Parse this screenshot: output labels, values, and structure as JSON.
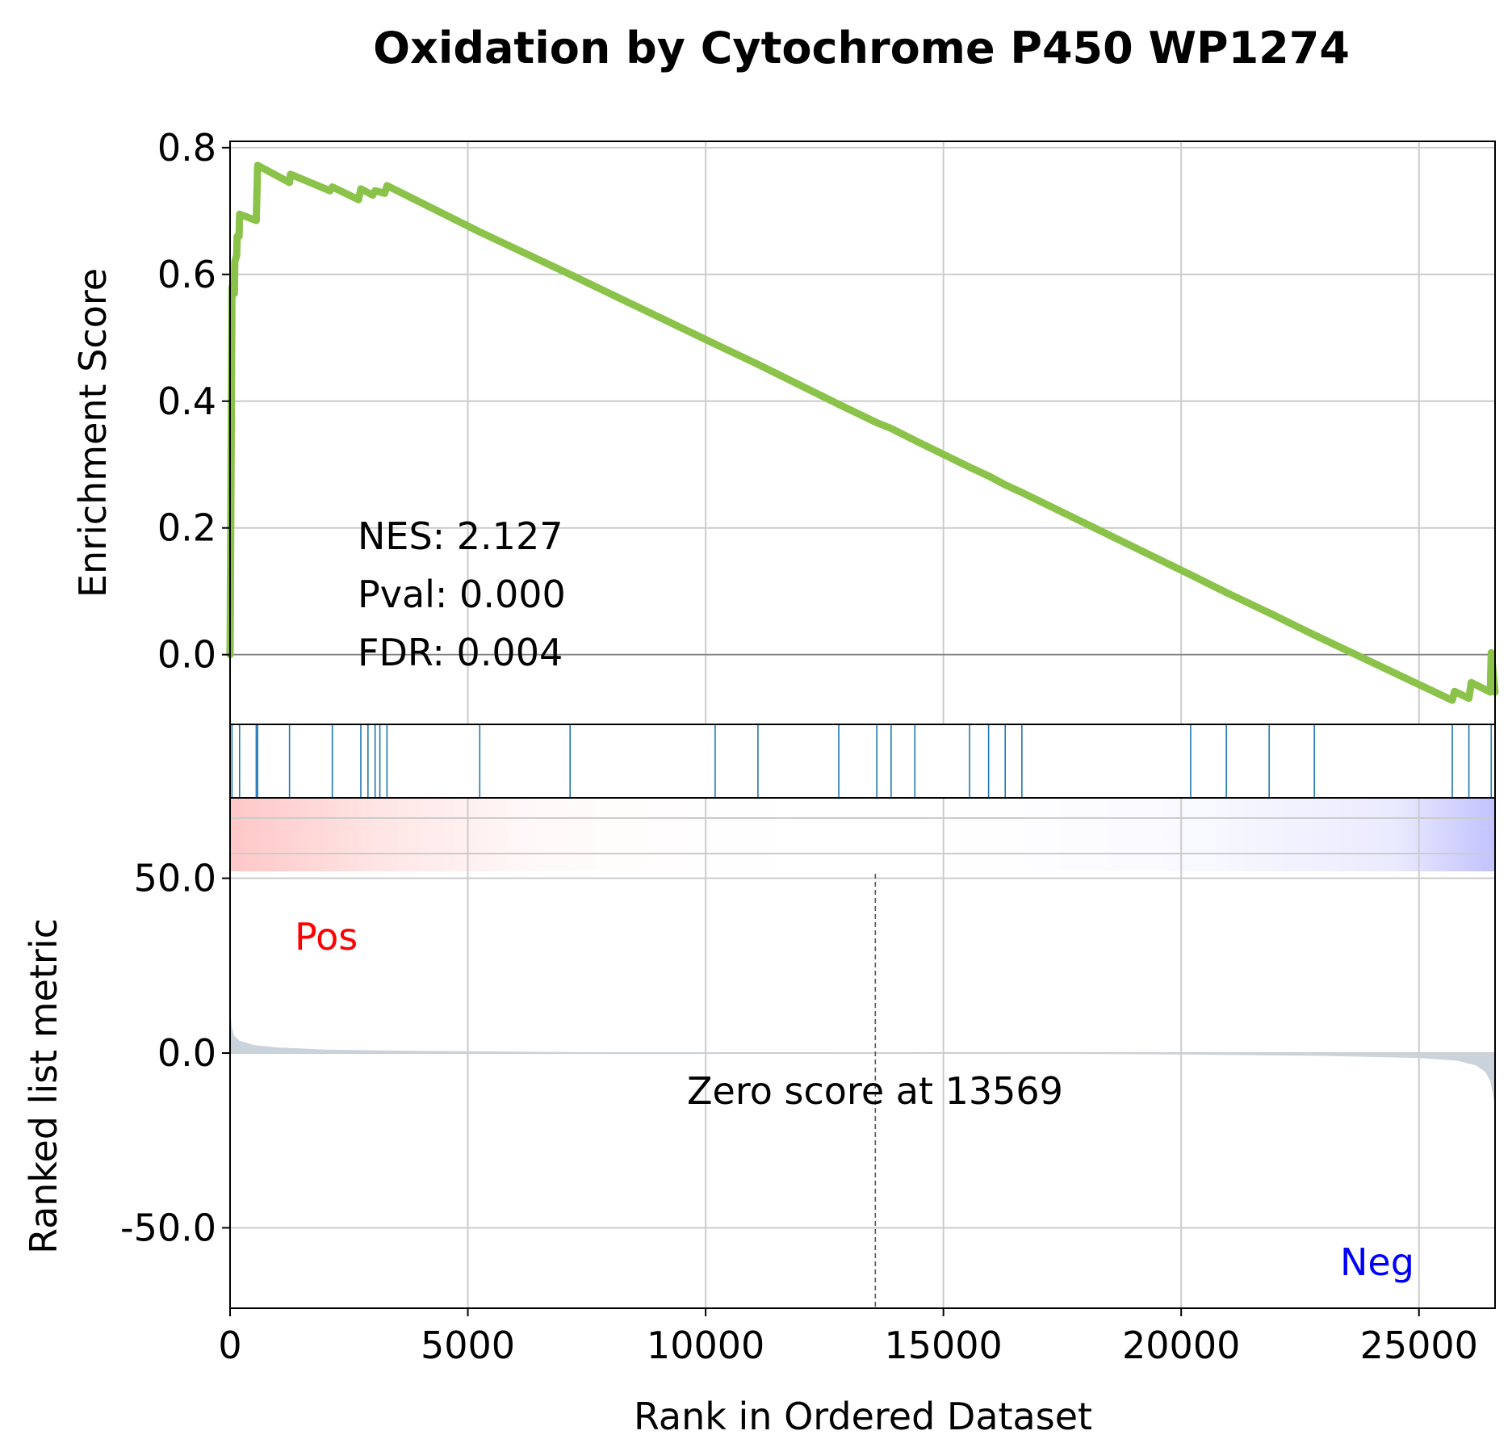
{
  "chart_data": {
    "type": "line",
    "title": "Oxidation by Cytochrome P450 WP1274",
    "xlabel": "Rank in Ordered Dataset",
    "xlim": [
      0,
      26600
    ],
    "x_ticks": [
      0,
      5000,
      10000,
      15000,
      20000,
      25000
    ],
    "grid": true,
    "panels": {
      "enrichment": {
        "ylabel": "Enrichment Score",
        "ylim": [
          -0.11,
          0.81
        ],
        "y_ticks": [
          0.0,
          0.2,
          0.4,
          0.6,
          0.8
        ],
        "y_tick_labels": [
          "0.0",
          "0.2",
          "0.4",
          "0.6",
          "0.8"
        ],
        "line_color": "#8bc34a",
        "points": [
          [
            0,
            0.0
          ],
          [
            40,
            0.58
          ],
          [
            90,
            0.57
          ],
          [
            100,
            0.62
          ],
          [
            140,
            0.63
          ],
          [
            150,
            0.66
          ],
          [
            190,
            0.66
          ],
          [
            200,
            0.695
          ],
          [
            550,
            0.685
          ],
          [
            580,
            0.772
          ],
          [
            1250,
            0.745
          ],
          [
            1270,
            0.758
          ],
          [
            2100,
            0.732
          ],
          [
            2150,
            0.738
          ],
          [
            2700,
            0.718
          ],
          [
            2750,
            0.735
          ],
          [
            3000,
            0.725
          ],
          [
            3050,
            0.732
          ],
          [
            3250,
            0.728
          ],
          [
            3300,
            0.74
          ],
          [
            5250,
            0.667
          ],
          [
            7150,
            0.6
          ],
          [
            10200,
            0.49
          ],
          [
            11100,
            0.458
          ],
          [
            12800,
            0.395
          ],
          [
            13600,
            0.366
          ],
          [
            13900,
            0.357
          ],
          [
            14400,
            0.338
          ],
          [
            15550,
            0.296
          ],
          [
            15950,
            0.282
          ],
          [
            16300,
            0.268
          ],
          [
            16650,
            0.256
          ],
          [
            20200,
            0.126
          ],
          [
            20950,
            0.098
          ],
          [
            21850,
            0.066
          ],
          [
            22800,
            0.031
          ],
          [
            25700,
            -0.072
          ],
          [
            25750,
            -0.058
          ],
          [
            26050,
            -0.069
          ],
          [
            26100,
            -0.044
          ],
          [
            26500,
            -0.059
          ],
          [
            26520,
            0.003
          ],
          [
            26600,
            -0.059
          ]
        ],
        "annotations": {
          "nes": "NES: 2.127",
          "pval": "Pval: 0.000",
          "fdr": "FDR: 0.004"
        }
      },
      "hits": {
        "color": "#1f77b4",
        "positions": [
          40,
          200,
          550,
          580,
          1250,
          2150,
          2750,
          2900,
          3050,
          3150,
          3300,
          5250,
          7150,
          10200,
          11100,
          12800,
          13600,
          13900,
          14400,
          15550,
          15950,
          16300,
          16650,
          20200,
          20950,
          21850,
          22800,
          25700,
          26050,
          26520
        ]
      },
      "ranked_metric": {
        "ylabel": "Ranked list metric",
        "ylim": [
          -73,
          73
        ],
        "y_ticks": [
          -50,
          0,
          50
        ],
        "y_tick_labels": [
          "-50.0",
          "0.0",
          "50.0"
        ],
        "fill_color": "#cad3dc",
        "points": [
          [
            0,
            13
          ],
          [
            30,
            8
          ],
          [
            80,
            5
          ],
          [
            200,
            3.5
          ],
          [
            500,
            2.3
          ],
          [
            1000,
            1.6
          ],
          [
            2000,
            1.0
          ],
          [
            4000,
            0.6
          ],
          [
            7000,
            0.3
          ],
          [
            10000,
            0.15
          ],
          [
            13569,
            0.0
          ],
          [
            17000,
            -0.2
          ],
          [
            20000,
            -0.4
          ],
          [
            23000,
            -0.8
          ],
          [
            25000,
            -1.4
          ],
          [
            25800,
            -2.2
          ],
          [
            26200,
            -3.5
          ],
          [
            26400,
            -5.5
          ],
          [
            26500,
            -8
          ],
          [
            26560,
            -12
          ],
          [
            26600,
            -15
          ]
        ],
        "zero_score_rank": 13569,
        "zero_label": "Zero score at 13569",
        "pos_label": "Pos",
        "neg_label": "Neg",
        "pos_color": "#ff0000",
        "neg_color": "#0000ff"
      }
    }
  }
}
